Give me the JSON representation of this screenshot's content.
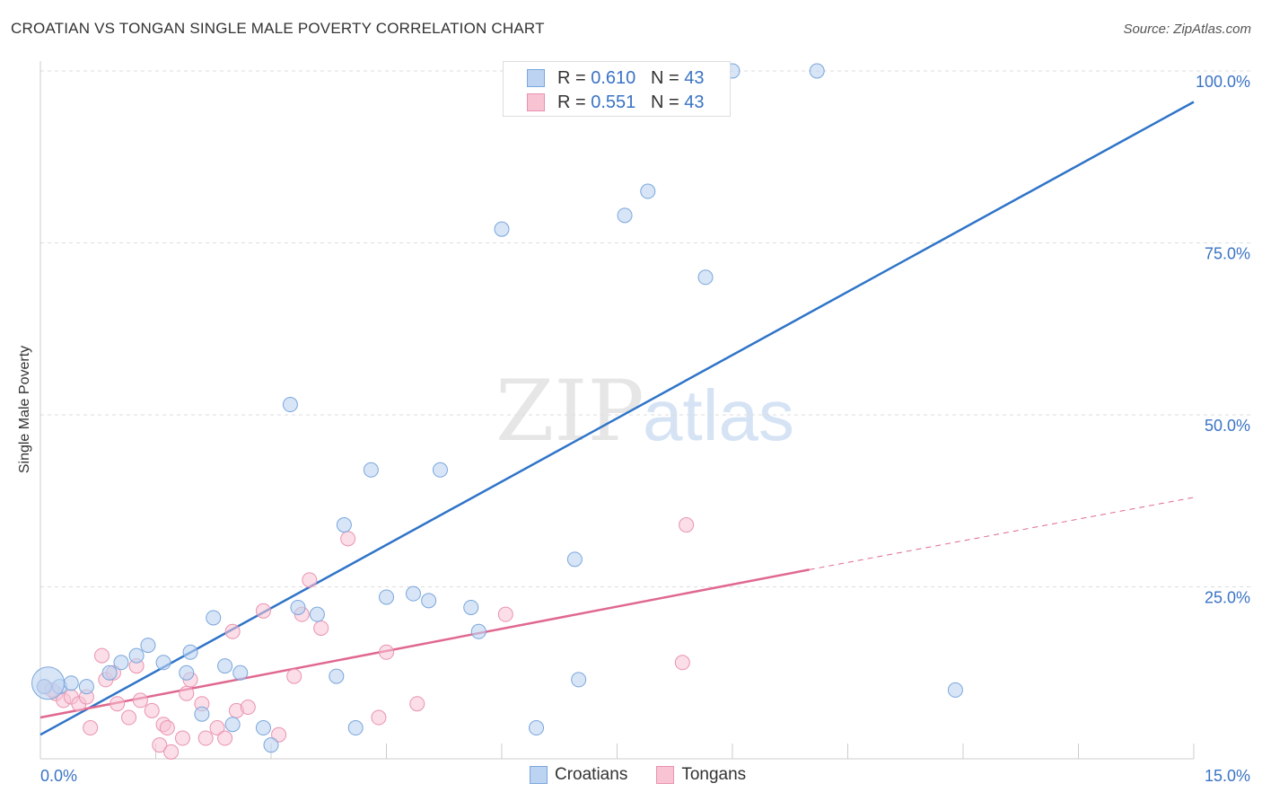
{
  "header": {
    "title": "CROATIAN VS TONGAN SINGLE MALE POVERTY CORRELATION CHART",
    "source": "Source: ZipAtlas.com"
  },
  "watermark": {
    "part1": "ZIP",
    "part2": "atlas"
  },
  "legend_top": {
    "rows": [
      {
        "r_label": "R = ",
        "r_value": "0.610",
        "n_label": "N = ",
        "n_value": "43"
      },
      {
        "r_label": "R = ",
        "r_value": "0.551",
        "n_label": "N = ",
        "n_value": "43"
      }
    ]
  },
  "legend_bottom": {
    "croatians": "Croatians",
    "tongans": "Tongans"
  },
  "colors": {
    "croatians_fill": "#bcd4f2",
    "croatians_stroke": "#7aa6dc",
    "croatians_line": "#2f74c8",
    "tongans_fill": "#f8c3d3",
    "tongans_stroke": "#e993b0",
    "tongans_line": "#e0688f",
    "tick_text": "#3a73c4",
    "grid": "#dddddd"
  },
  "chart_data": {
    "type": "scatter",
    "title": "CROATIAN VS TONGAN SINGLE MALE POVERTY CORRELATION CHART",
    "xlabel": "",
    "ylabel": "Single Male Poverty",
    "xlim": [
      0,
      15
    ],
    "ylim": [
      0,
      100
    ],
    "x_tick_labels": [
      "0.0%",
      "15.0%"
    ],
    "y_tick_labels": [
      "25.0%",
      "50.0%",
      "75.0%",
      "100.0%"
    ],
    "y_ticks": [
      25,
      50,
      75,
      100
    ],
    "grid": true,
    "legend_position": "top-center",
    "series": [
      {
        "name": "Croatians",
        "points": [
          [
            0.05,
            10.5
          ],
          [
            0.25,
            10.5
          ],
          [
            0.4,
            11.0
          ],
          [
            0.6,
            10.5
          ],
          [
            0.9,
            12.5
          ],
          [
            1.05,
            14.0
          ],
          [
            1.25,
            15.0
          ],
          [
            1.4,
            16.5
          ],
          [
            1.6,
            14.0
          ],
          [
            1.9,
            12.5
          ],
          [
            1.95,
            15.5
          ],
          [
            2.1,
            6.5
          ],
          [
            2.25,
            20.5
          ],
          [
            2.4,
            13.5
          ],
          [
            2.5,
            5.0
          ],
          [
            2.6,
            12.5
          ],
          [
            2.9,
            4.5
          ],
          [
            3.0,
            2.0
          ],
          [
            3.25,
            51.5
          ],
          [
            3.35,
            22.0
          ],
          [
            3.6,
            21.0
          ],
          [
            3.85,
            12.0
          ],
          [
            3.95,
            34.0
          ],
          [
            4.1,
            4.5
          ],
          [
            4.3,
            42.0
          ],
          [
            4.5,
            23.5
          ],
          [
            4.85,
            24.0
          ],
          [
            5.05,
            23.0
          ],
          [
            5.2,
            42.0
          ],
          [
            5.6,
            22.0
          ],
          [
            5.7,
            18.5
          ],
          [
            6.0,
            77.0
          ],
          [
            6.45,
            4.5
          ],
          [
            6.5,
            100.0
          ],
          [
            6.95,
            29.0
          ],
          [
            7.0,
            11.5
          ],
          [
            7.6,
            79.0
          ],
          [
            7.9,
            82.5
          ],
          [
            8.65,
            70.0
          ],
          [
            9.0,
            100.0
          ],
          [
            10.1,
            100.0
          ],
          [
            11.9,
            10.0
          ],
          [
            0.1,
            11.0
          ]
        ],
        "trend": {
          "x": [
            0,
            15
          ],
          "y": [
            3.5,
            95.5
          ]
        }
      },
      {
        "name": "Tongans",
        "points": [
          [
            0.05,
            10.5
          ],
          [
            0.2,
            9.5
          ],
          [
            0.3,
            8.5
          ],
          [
            0.4,
            9.0
          ],
          [
            0.5,
            8.0
          ],
          [
            0.6,
            9.0
          ],
          [
            0.65,
            4.5
          ],
          [
            0.8,
            15.0
          ],
          [
            0.85,
            11.5
          ],
          [
            0.95,
            12.5
          ],
          [
            1.0,
            8.0
          ],
          [
            1.15,
            6.0
          ],
          [
            1.25,
            13.5
          ],
          [
            1.3,
            8.5
          ],
          [
            1.45,
            7.0
          ],
          [
            1.55,
            2.0
          ],
          [
            1.6,
            5.0
          ],
          [
            1.65,
            4.5
          ],
          [
            1.7,
            1.0
          ],
          [
            1.85,
            3.0
          ],
          [
            1.9,
            9.5
          ],
          [
            1.95,
            11.5
          ],
          [
            2.1,
            8.0
          ],
          [
            2.15,
            3.0
          ],
          [
            2.3,
            4.5
          ],
          [
            2.4,
            3.0
          ],
          [
            2.5,
            18.5
          ],
          [
            2.55,
            7.0
          ],
          [
            2.7,
            7.5
          ],
          [
            2.9,
            21.5
          ],
          [
            3.1,
            3.5
          ],
          [
            3.3,
            12.0
          ],
          [
            3.4,
            21.0
          ],
          [
            3.5,
            26.0
          ],
          [
            3.65,
            19.0
          ],
          [
            4.0,
            32.0
          ],
          [
            4.4,
            6.0
          ],
          [
            4.5,
            15.5
          ],
          [
            4.9,
            8.0
          ],
          [
            6.05,
            21.0
          ],
          [
            8.35,
            14.0
          ],
          [
            8.4,
            34.0
          ],
          [
            0.15,
            10.0
          ]
        ],
        "trend": {
          "x": [
            0,
            10
          ],
          "y": [
            6.0,
            27.5
          ]
        },
        "trend_dashed": {
          "x": [
            10,
            15
          ],
          "y": [
            27.5,
            38.0
          ]
        }
      }
    ]
  }
}
